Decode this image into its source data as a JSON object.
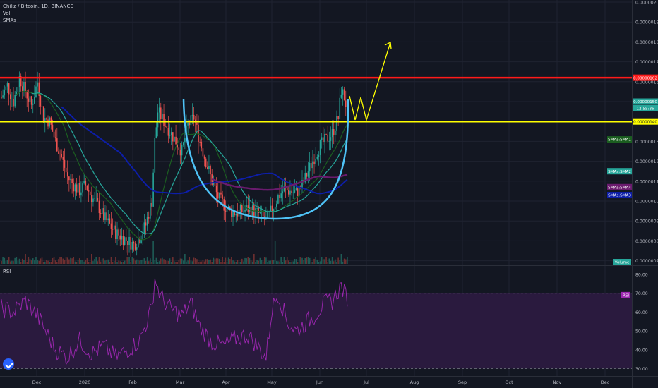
{
  "header": {
    "symbol": "Chiliz / Bitcoin, 1D, BINANCE",
    "indicator_vol": "Vol",
    "indicator_smas": "SMAs",
    "rsi_pane": "RSI"
  },
  "colors": {
    "bg": "#131722",
    "grid": "#1f2331",
    "up": "#26a69a",
    "down": "#ef5350",
    "resistance": "#ff1a1a",
    "support": "#ffff00",
    "cup": "#4fc3f7",
    "sma1": "#1b5e20",
    "sma2": "#26a69a",
    "sma3": "#0d1ea8",
    "sma4": "#6a1b6e",
    "rsi": "#9c27b0",
    "rsi_band": "#2a1a3e"
  },
  "chart_data": {
    "type": "candlestick",
    "price_axis": {
      "ylim": [
        7e-07,
        2e-06
      ],
      "ticks": [
        "0.00000200",
        "0.00000190",
        "0.00000180",
        "0.00000170",
        "0.00000160",
        "0.00000150",
        "0.00000130",
        "0.00000120",
        "0.00000110",
        "0.00000100",
        "0.00000090",
        "0.00000080",
        "0.00000070"
      ]
    },
    "time_axis": {
      "labels": [
        "Dec",
        "2020",
        "Feb",
        "Mar",
        "Apr",
        "May",
        "Jun",
        "Jul",
        "Aug",
        "Sep",
        "Oct",
        "Nov",
        "Dec"
      ]
    },
    "price_tags": [
      {
        "text": "0.00000162",
        "value": 1.62e-06,
        "bg": "#ff1a1a",
        "fg": "#ffffff"
      },
      {
        "text": "0.00000150",
        "value": 1.5e-06,
        "bg": "#26a69a",
        "fg": "#ffffff"
      },
      {
        "text": "12:55:36",
        "value": 1.46e-06,
        "bg": "#26a69a",
        "fg": "#ffffff"
      },
      {
        "text": "0.00000140",
        "value": 1.4e-06,
        "bg": "#ffff00",
        "fg": "#131722"
      },
      {
        "text": "SMAs:SMA1",
        "value": 1.31e-06,
        "bg": "#1b5e20",
        "fg": "#ffffff"
      },
      {
        "text": "SMAs:SMA2",
        "value": 1.15e-06,
        "bg": "#26a69a",
        "fg": "#ffffff"
      },
      {
        "text": "SMAs:SMA4",
        "value": 1.07e-06,
        "bg": "#6a1b6e",
        "fg": "#ffffff"
      },
      {
        "text": "SMAs:SMA3",
        "value": 1.03e-06,
        "bg": "#0d1ea8",
        "fg": "#ffffff"
      },
      {
        "text": "Volume",
        "value": 7e-07,
        "bg": "#26a69a",
        "fg": "#ffffff"
      }
    ],
    "levels": [
      {
        "name": "resistance",
        "value": 1.62e-06
      },
      {
        "name": "support",
        "value": 1.4e-06
      }
    ],
    "rsi_axis": {
      "ylim": [
        28,
        86
      ],
      "ticks": [
        "80.00",
        "70.00",
        "60.00",
        "50.00",
        "40.00",
        "30.00"
      ],
      "band": [
        30,
        70
      ],
      "tag": "RSI"
    },
    "close_key": [
      [
        0,
        1.52
      ],
      [
        4,
        1.58
      ],
      [
        8,
        1.5
      ],
      [
        12,
        1.62
      ],
      [
        16,
        1.55
      ],
      [
        20,
        1.48
      ],
      [
        24,
        1.6
      ],
      [
        28,
        1.42
      ],
      [
        32,
        1.4
      ],
      [
        36,
        1.3
      ],
      [
        40,
        1.22
      ],
      [
        44,
        1.12
      ],
      [
        48,
        1.08
      ],
      [
        52,
        1.05
      ],
      [
        56,
        1.08
      ],
      [
        60,
        1.02
      ],
      [
        64,
        0.98
      ],
      [
        68,
        0.92
      ],
      [
        72,
        0.88
      ],
      [
        76,
        0.84
      ],
      [
        80,
        0.82
      ],
      [
        84,
        0.8
      ],
      [
        88,
        0.78
      ],
      [
        92,
        0.82
      ],
      [
        96,
        0.88
      ],
      [
        100,
        1.0
      ],
      [
        102,
        1.3
      ],
      [
        104,
        1.45
      ],
      [
        108,
        1.4
      ],
      [
        112,
        1.35
      ],
      [
        116,
        1.3
      ],
      [
        120,
        1.25
      ],
      [
        124,
        1.38
      ],
      [
        128,
        1.42
      ],
      [
        132,
        1.3
      ],
      [
        136,
        1.2
      ],
      [
        140,
        1.1
      ],
      [
        144,
        1.02
      ],
      [
        148,
        0.98
      ],
      [
        152,
        0.95
      ],
      [
        156,
        0.94
      ],
      [
        160,
        0.95
      ],
      [
        164,
        0.96
      ],
      [
        168,
        0.95
      ],
      [
        172,
        0.93
      ],
      [
        176,
        0.9
      ],
      [
        180,
        0.96
      ],
      [
        184,
        1.02
      ],
      [
        188,
        1.06
      ],
      [
        192,
        1.05
      ],
      [
        196,
        1.04
      ],
      [
        200,
        1.08
      ],
      [
        204,
        1.15
      ],
      [
        208,
        1.22
      ],
      [
        212,
        1.28
      ],
      [
        216,
        1.31
      ],
      [
        220,
        1.34
      ],
      [
        224,
        1.42
      ],
      [
        226,
        1.56
      ],
      [
        228,
        1.52
      ],
      [
        230,
        1.46
      ]
    ],
    "rsi_key": [
      [
        0,
        62
      ],
      [
        8,
        60
      ],
      [
        16,
        66
      ],
      [
        24,
        58
      ],
      [
        28,
        52
      ],
      [
        36,
        40
      ],
      [
        44,
        36
      ],
      [
        52,
        45
      ],
      [
        60,
        38
      ],
      [
        68,
        42
      ],
      [
        76,
        36
      ],
      [
        84,
        40
      ],
      [
        92,
        45
      ],
      [
        100,
        62
      ],
      [
        102,
        78
      ],
      [
        106,
        68
      ],
      [
        112,
        62
      ],
      [
        120,
        58
      ],
      [
        126,
        65
      ],
      [
        132,
        52
      ],
      [
        140,
        44
      ],
      [
        148,
        42
      ],
      [
        156,
        46
      ],
      [
        164,
        48
      ],
      [
        172,
        40
      ],
      [
        176,
        36
      ],
      [
        180,
        62
      ],
      [
        184,
        70
      ],
      [
        190,
        55
      ],
      [
        196,
        50
      ],
      [
        202,
        54
      ],
      [
        208,
        58
      ],
      [
        214,
        64
      ],
      [
        220,
        66
      ],
      [
        226,
        74
      ],
      [
        228,
        70
      ],
      [
        230,
        68
      ]
    ]
  }
}
